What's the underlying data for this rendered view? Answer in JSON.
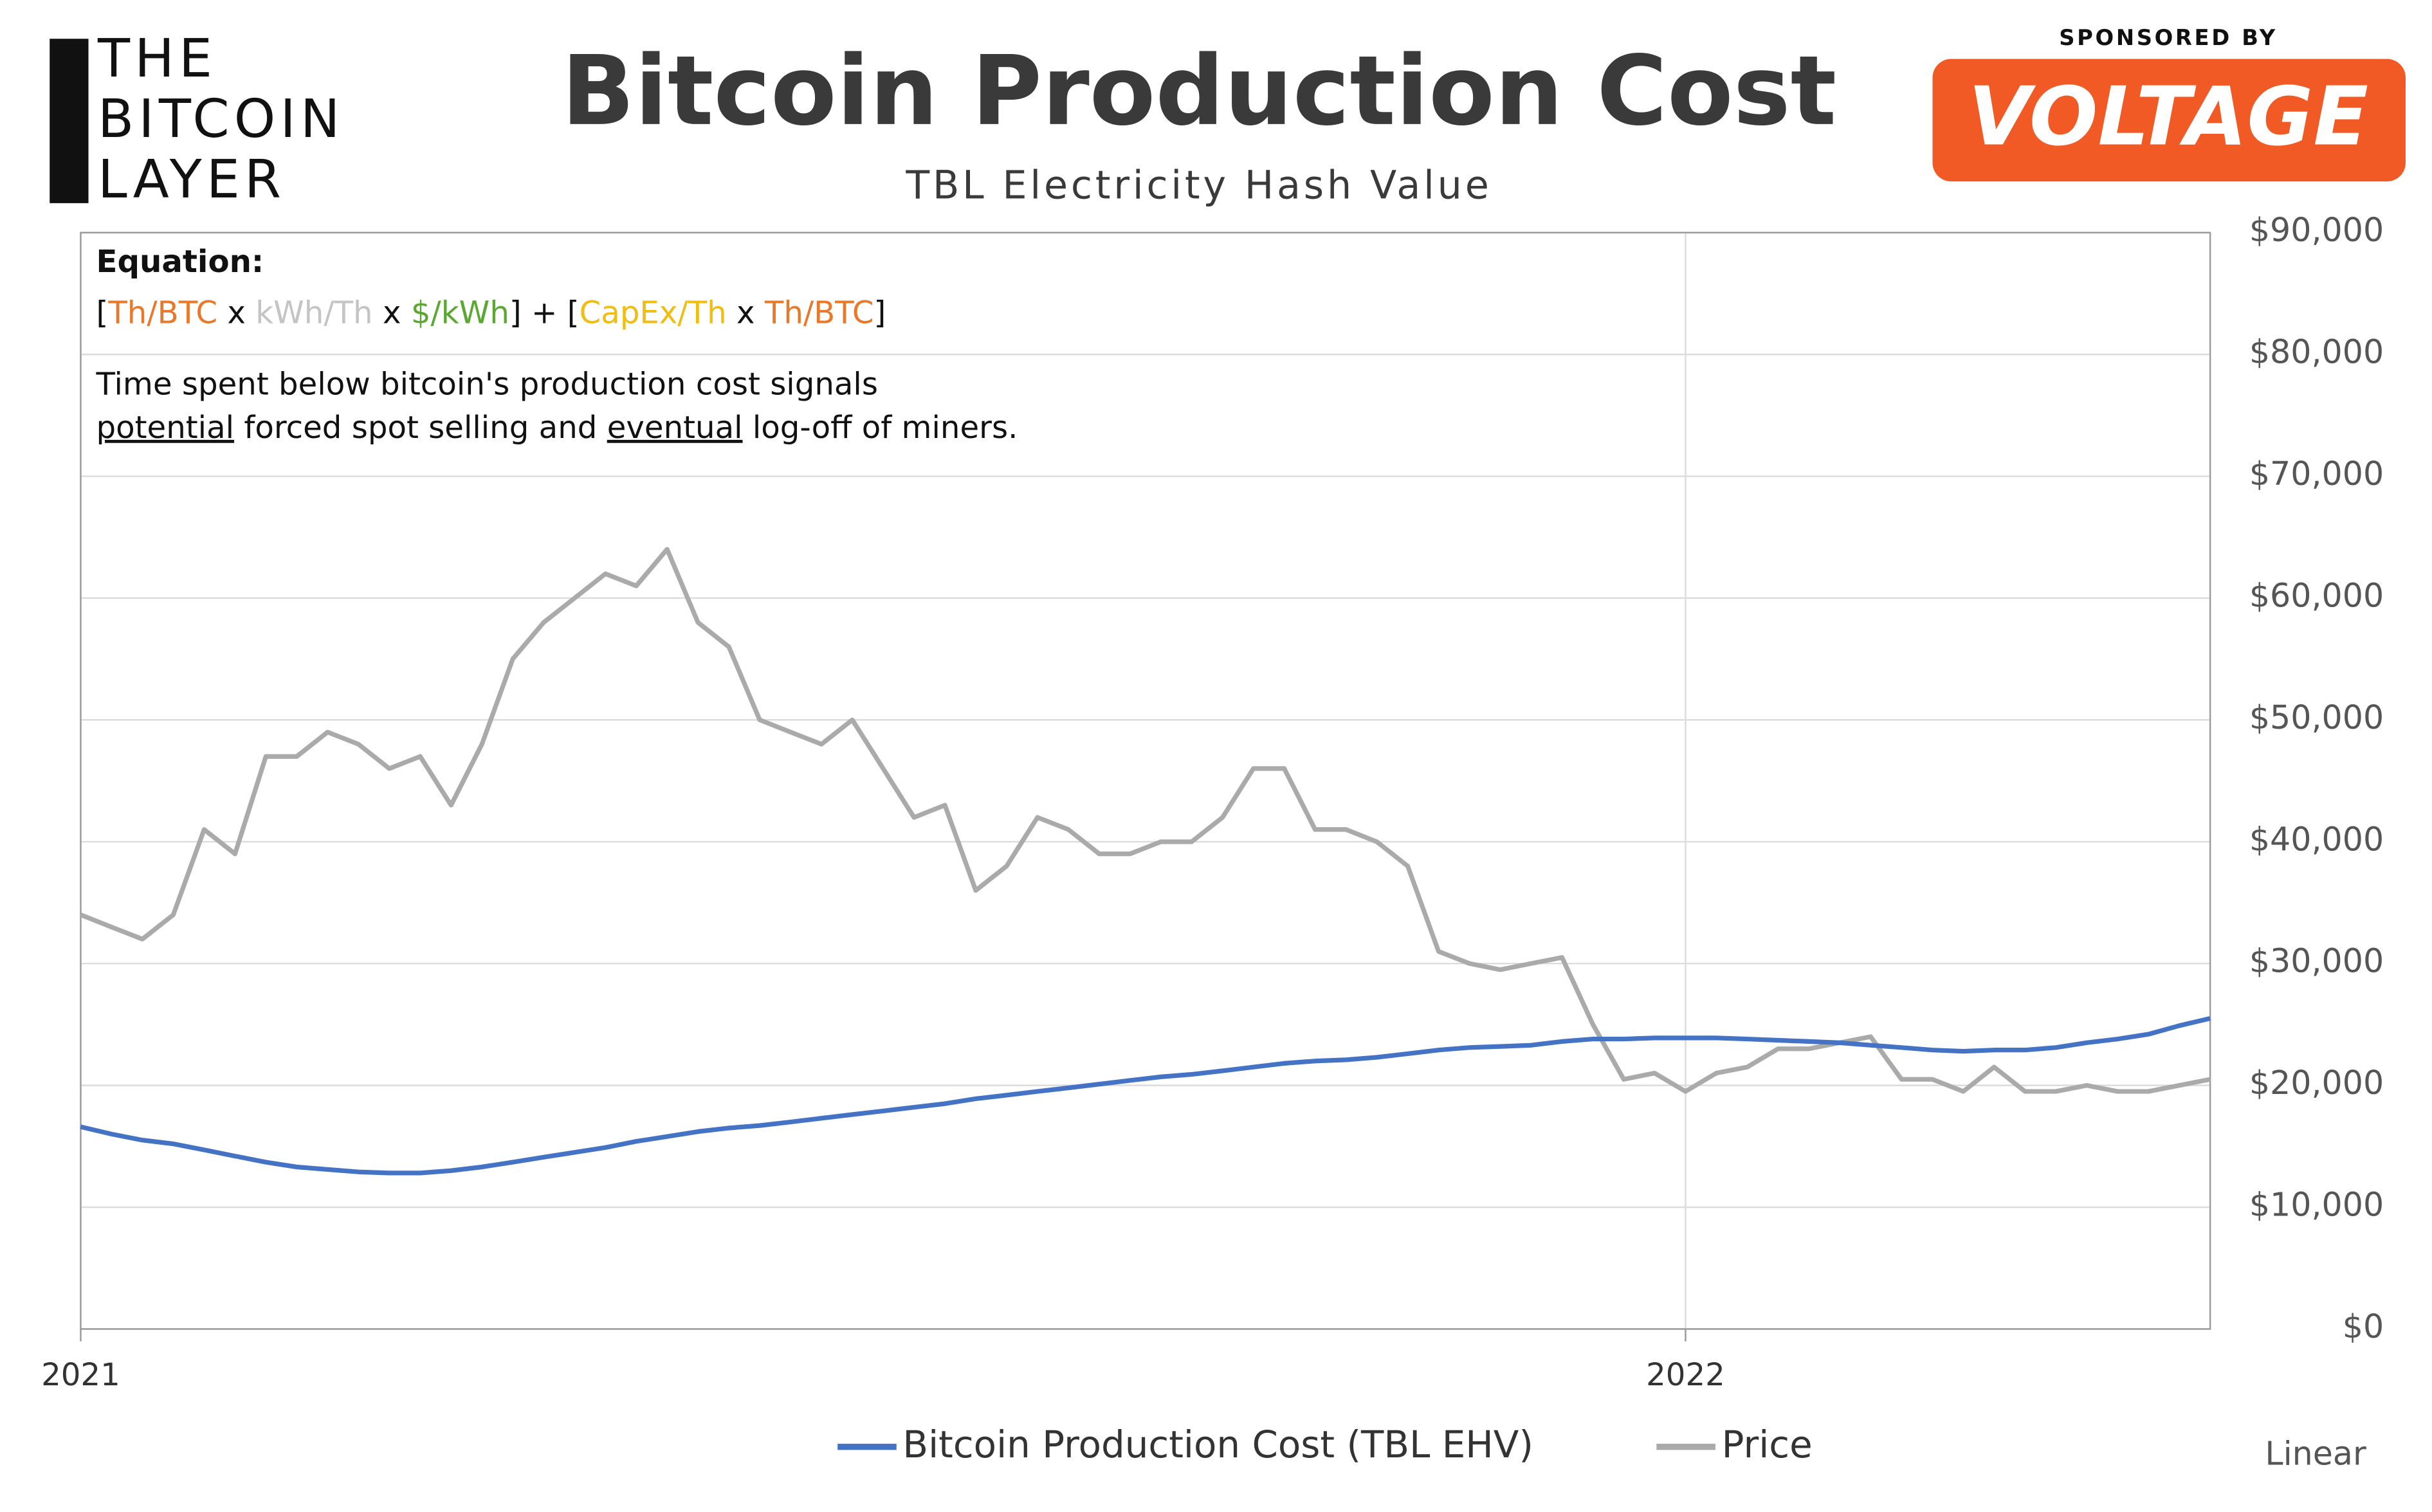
{
  "logo": [
    "THE",
    "BITCOIN",
    "LAYER"
  ],
  "sponsor": {
    "caption": "SPONSORED BY",
    "name": "VOLTAGE"
  },
  "chart_data": {
    "type": "line",
    "title": "Bitcoin Production Cost",
    "subtitle": "TBL Electricity Hash Value",
    "equation_heading": "Equation:",
    "equation_parts": [
      {
        "text": "[",
        "color": "#111111"
      },
      {
        "text": "Th/BTC",
        "color": "#e8782a"
      },
      {
        "text": " x ",
        "color": "#111111"
      },
      {
        "text": "kWh/Th",
        "color": "#c4c4c4"
      },
      {
        "text": " x ",
        "color": "#111111"
      },
      {
        "text": "$/kWh",
        "color": "#5aa832"
      },
      {
        "text": "] + [",
        "color": "#111111"
      },
      {
        "text": "CapEx/Th",
        "color": "#f0bd10"
      },
      {
        "text": " x ",
        "color": "#111111"
      },
      {
        "text": "Th/BTC",
        "color": "#e8782a"
      },
      {
        "text": "]",
        "color": "#111111"
      }
    ],
    "note_lines": [
      [
        {
          "text": "Time spent below bitcoin's production cost signals",
          "underline": false
        }
      ],
      [
        {
          "text": "potential",
          "underline": true
        },
        {
          "text": " forced spot selling and ",
          "underline": false
        },
        {
          "text": "eventual",
          "underline": true
        },
        {
          "text": " log-off of miners.",
          "underline": false
        }
      ]
    ],
    "scale_label": "Linear",
    "categories": [
      "2021",
      null,
      null,
      null,
      null,
      null,
      null,
      null,
      null,
      null,
      null,
      null,
      null,
      null,
      null,
      null,
      null,
      null,
      null,
      null,
      null,
      null,
      null,
      null,
      null,
      null,
      null,
      null,
      null,
      null,
      null,
      null,
      null,
      null,
      null,
      null,
      null,
      null,
      null,
      null,
      null,
      null,
      null,
      null,
      null,
      null,
      null,
      null,
      null,
      null,
      null,
      null,
      "2022",
      null,
      null,
      null,
      null,
      null,
      null,
      null,
      null,
      null,
      null,
      null,
      null,
      null,
      null,
      null,
      null,
      null
    ],
    "series": [
      {
        "name": "Bitcoin Production Cost (TBL EHV)",
        "color": "#4472c4",
        "values": [
          16600,
          16000,
          15500,
          15200,
          14700,
          14200,
          13700,
          13300,
          13100,
          12900,
          12800,
          12800,
          13000,
          13300,
          13700,
          14100,
          14500,
          14900,
          15400,
          15800,
          16200,
          16500,
          16700,
          17000,
          17300,
          17600,
          17900,
          18200,
          18500,
          18900,
          19200,
          19500,
          19800,
          20100,
          20400,
          20700,
          20900,
          21200,
          21500,
          21800,
          22000,
          22100,
          22300,
          22600,
          22900,
          23100,
          23200,
          23300,
          23600,
          23800,
          23800,
          23900,
          23900,
          23900,
          23800,
          23700,
          23600,
          23500,
          23300,
          23100,
          22900,
          22800,
          22900,
          22900,
          23100,
          23500,
          23800,
          24200,
          24900,
          25500
        ]
      },
      {
        "name": "Price",
        "color": "#aaaaaa",
        "values": [
          34000,
          33000,
          32000,
          34000,
          41000,
          39000,
          47000,
          47000,
          49000,
          48000,
          46000,
          47000,
          43000,
          48000,
          55000,
          58000,
          60000,
          62000,
          61000,
          64000,
          58000,
          56000,
          50000,
          49000,
          48000,
          50000,
          46000,
          42000,
          43000,
          36000,
          38000,
          42000,
          41000,
          39000,
          39000,
          40000,
          40000,
          42000,
          46000,
          46000,
          41000,
          41000,
          40000,
          38000,
          31000,
          30000,
          29500,
          30000,
          30500,
          25000,
          20500,
          21000,
          19500,
          21000,
          21500,
          23000,
          23000,
          23500,
          24000,
          20500,
          20500,
          19500,
          21500,
          19500,
          19500,
          20000,
          19500,
          19500,
          20000,
          20500
        ]
      }
    ],
    "ylim": [
      0,
      90000
    ],
    "yticks": [
      {
        "value": 0,
        "label": "$0"
      },
      {
        "value": 10000,
        "label": "$10,000"
      },
      {
        "value": 20000,
        "label": "$20,000"
      },
      {
        "value": 30000,
        "label": "$30,000"
      },
      {
        "value": 40000,
        "label": "$40,000"
      },
      {
        "value": 50000,
        "label": "$50,000"
      },
      {
        "value": 60000,
        "label": "$60,000"
      },
      {
        "value": 70000,
        "label": "$70,000"
      },
      {
        "value": 80000,
        "label": "$80,000"
      },
      {
        "value": 90000,
        "label": "$90,000"
      }
    ],
    "grid": true
  }
}
